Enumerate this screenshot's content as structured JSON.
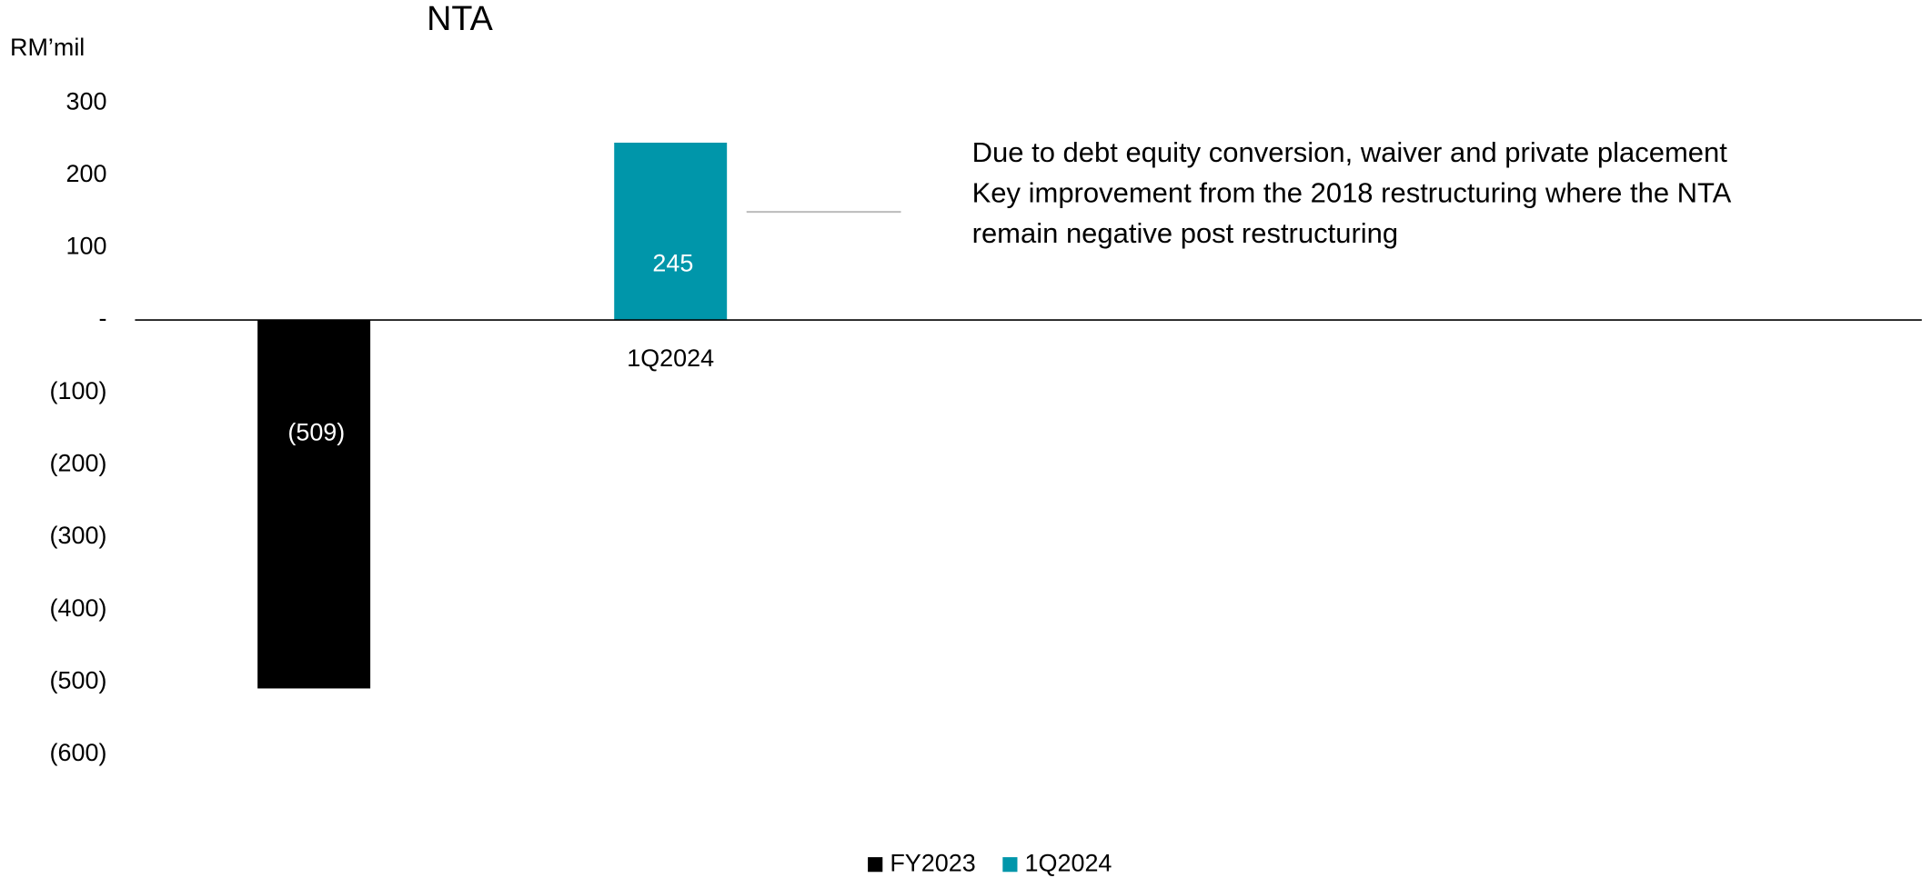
{
  "chart_data": {
    "type": "bar",
    "title": "NTA",
    "y_label": "RM’mil",
    "categories": [
      null,
      "1Q2024"
    ],
    "series": [
      {
        "name": "FY2023",
        "color": "#000000",
        "values": [
          -509,
          null
        ],
        "value_labels": [
          "(509)",
          null
        ]
      },
      {
        "name": "1Q2024",
        "color": "#0096aa",
        "values": [
          null,
          245
        ]
      }
    ],
    "ylim": [
      -600,
      300
    ],
    "yticks": [
      300,
      200,
      100,
      {
        "value": 0,
        "label": "-"
      },
      {
        "value": -100,
        "label": "(100)"
      },
      {
        "value": -200,
        "label": "(200)"
      },
      {
        "value": -300,
        "label": "(300)"
      },
      {
        "value": -400,
        "label": "(400)"
      },
      {
        "value": -500,
        "label": "(500)"
      },
      {
        "value": -600,
        "label": "(600)"
      }
    ],
    "grid": false,
    "annotations": [
      "Due to debt equity conversion, waiver and private placement",
      "Key improvement from the 2018 restructuring where the NTA remain negative post restructuring"
    ]
  }
}
